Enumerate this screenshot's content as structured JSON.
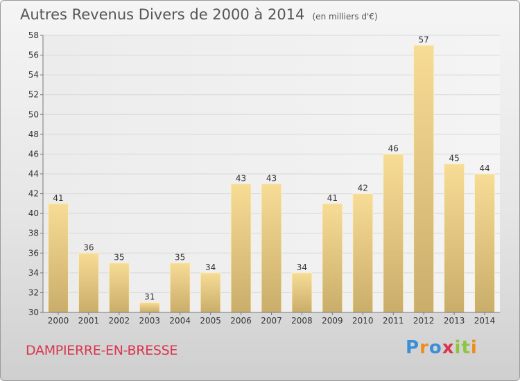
{
  "header": {
    "title": "Autres Revenus Divers de 2000 à 2014",
    "unit": "(en milliers d'€)"
  },
  "footer": {
    "commune": "DAMPIERRE-EN-BRESSE",
    "brand": "Proxiti"
  },
  "colors": {
    "bar_light": "#f7dc96",
    "bar_dark": "#c9ad6a",
    "grid": "#d8d8d8",
    "commune": "#d9364e"
  },
  "chart_data": {
    "type": "bar",
    "title": "Autres Revenus Divers de 2000 à 2014",
    "xlabel": "",
    "ylabel": "",
    "categories": [
      "2000",
      "2001",
      "2002",
      "2003",
      "2004",
      "2005",
      "2006",
      "2007",
      "2008",
      "2009",
      "2010",
      "2011",
      "2012",
      "2013",
      "2014"
    ],
    "values": [
      41,
      36,
      35,
      31,
      35,
      34,
      43,
      43,
      34,
      41,
      42,
      46,
      57,
      45,
      44
    ],
    "data_labels": [
      "41",
      "36",
      "35",
      "31",
      "35",
      "34",
      "43",
      "43",
      "34",
      "41",
      "42",
      "46",
      "57",
      "45",
      "44"
    ],
    "ylim": [
      30,
      58
    ],
    "yticks": [
      "30",
      "32",
      "34",
      "36",
      "38",
      "40",
      "42",
      "44",
      "46",
      "48",
      "50",
      "52",
      "54",
      "56",
      "58"
    ],
    "grid": true,
    "legend": "none"
  }
}
